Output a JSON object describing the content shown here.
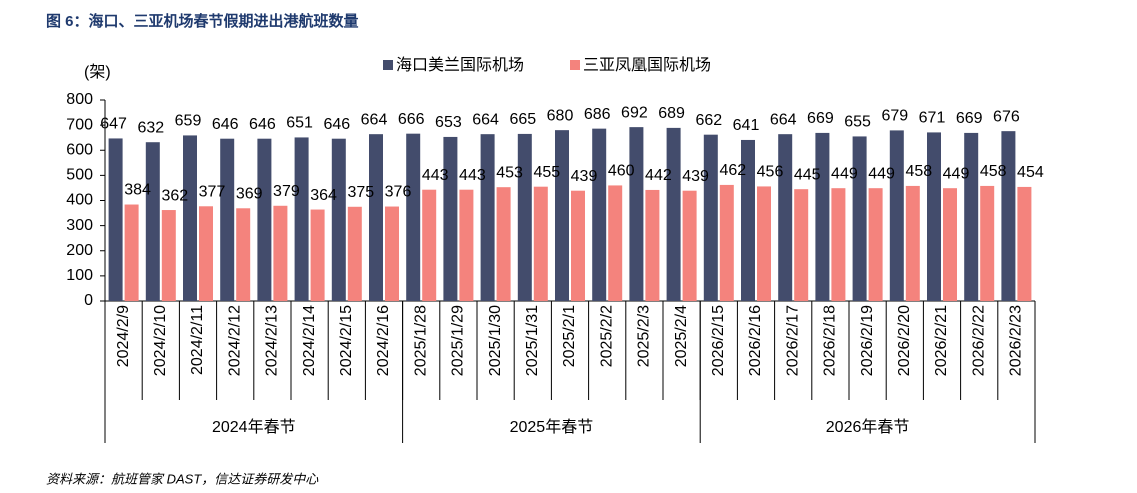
{
  "chart_data": {
    "type": "bar",
    "title": "图 6：海口、三亚机场春节假期进出港航班数量",
    "y_label": "(架)",
    "source": "资料来源：航班管家 DAST，信达证券研发中心",
    "category_groups": [
      {
        "name": "2024年春节",
        "categories": [
          "2024/2/9",
          "2024/2/10",
          "2024/2/11",
          "2024/2/12",
          "2024/2/13",
          "2024/2/14",
          "2024/2/15",
          "2024/2/16"
        ]
      },
      {
        "name": "2025年春节",
        "categories": [
          "2025/1/28",
          "2025/1/29",
          "2025/1/30",
          "2025/1/31",
          "2025/2/1",
          "2025/2/2",
          "2025/2/3",
          "2025/2/4"
        ]
      },
      {
        "name": "2026年春节",
        "categories": [
          "2026/2/15",
          "2026/2/16",
          "2026/2/17",
          "2026/2/18",
          "2026/2/19",
          "2026/2/20",
          "2026/2/21",
          "2026/2/22",
          "2026/2/23"
        ]
      }
    ],
    "series": [
      {
        "name": "海口美兰国际机场",
        "color": "#434c6c",
        "values": [
          647,
          632,
          659,
          646,
          646,
          651,
          646,
          664,
          666,
          653,
          664,
          665,
          680,
          686,
          692,
          689,
          662,
          641,
          664,
          669,
          655,
          679,
          671,
          669,
          676
        ]
      },
      {
        "name": "三亚凤凰国际机场",
        "color": "#f4837d",
        "values": [
          384,
          362,
          377,
          369,
          379,
          364,
          375,
          376,
          443,
          443,
          453,
          455,
          439,
          460,
          442,
          439,
          462,
          456,
          445,
          449,
          449,
          458,
          449,
          458,
          454
        ]
      }
    ],
    "ylim": [
      0,
      800
    ],
    "yticks": [
      0,
      100,
      200,
      300,
      400,
      500,
      600,
      700,
      800
    ],
    "legend": "top"
  }
}
